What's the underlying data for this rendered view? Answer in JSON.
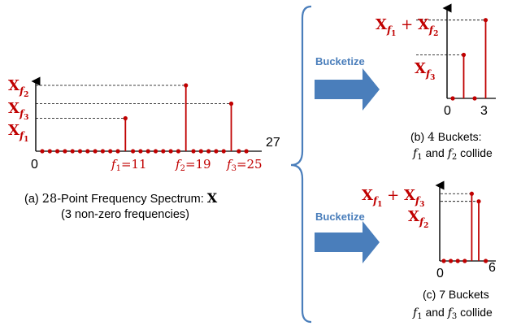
{
  "colors": {
    "stem": "#c00000",
    "arrow": "#4a7ebb",
    "arrow_text": "#4a7ebb",
    "brace": "#4a7ebb",
    "axis": "#000000"
  },
  "main": {
    "n_points": 28,
    "peaks": [
      {
        "index": 11,
        "level": 0.45,
        "name": "X",
        "sub": "f",
        "subsub": "1"
      },
      {
        "index": 19,
        "level": 0.9,
        "name": "X",
        "sub": "f",
        "subsub": "2"
      },
      {
        "index": 25,
        "level": 0.65,
        "name": "X",
        "sub": "f",
        "subsub": "3"
      }
    ],
    "x_start_label": "0",
    "x_end_label": "27",
    "freq_labels": [
      {
        "f": "f",
        "sub": "1",
        "eq": "=11"
      },
      {
        "f": "f",
        "sub": "2",
        "eq": "=19"
      },
      {
        "f": "f",
        "sub": "3",
        "eq": "=25"
      }
    ],
    "caption_line1_pre": "(a) ",
    "caption_line1_num": "28",
    "caption_line1_mid": "-Point Frequency Spectrum: ",
    "caption_line1_bold": "X",
    "caption_line2": "(3  non-zero frequencies)"
  },
  "bucket4": {
    "arrow_label": "Bucketize",
    "n_points": 4,
    "peaks": [
      {
        "index": 1,
        "level": 0.5
      },
      {
        "index": 3,
        "level": 0.9
      }
    ],
    "top_label": {
      "a": "X",
      "a_sub": "f",
      "a_subsub": "1",
      "plus": " + ",
      "b": "X",
      "b_sub": "f",
      "b_subsub": "2"
    },
    "low_label": {
      "a": "X",
      "a_sub": "f",
      "a_subsub": "3"
    },
    "x_start_label": "0",
    "x_end_label": "3",
    "caption_line1_pre": "(b) ",
    "caption_line1_num": "4",
    "caption_line1_post": " Buckets:",
    "caption_line2": {
      "f1": "f",
      "s1": "1",
      "mid": " and ",
      "f2": "f",
      "s2": "2",
      "post": " collide"
    }
  },
  "bucket7": {
    "arrow_label": "Bucketize",
    "n_points": 7,
    "peaks": [
      {
        "index": 4,
        "level": 0.88
      },
      {
        "index": 5,
        "level": 0.78
      }
    ],
    "top_label": {
      "a": "X",
      "a_sub": "f",
      "a_subsub": "1",
      "plus": " + ",
      "b": "X",
      "b_sub": "f",
      "b_subsub": "3"
    },
    "low_label": {
      "a": "X",
      "a_sub": "f",
      "a_subsub": "2"
    },
    "x_start_label": "0",
    "x_end_label": "6",
    "caption_line1": "(c) 7 Buckets",
    "caption_line2": {
      "f1": "f",
      "s1": "1",
      "mid": " and ",
      "f2": "f",
      "s2": "3",
      "post": " collide"
    }
  }
}
